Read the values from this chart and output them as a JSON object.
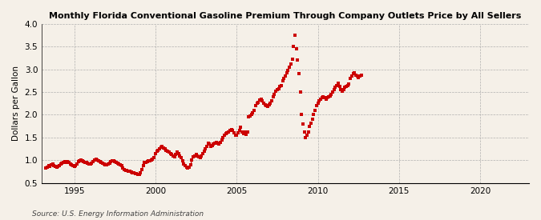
{
  "title": "Monthly Florida Conventional Gasoline Premium Through Company Outlets Price by All Sellers",
  "ylabel": "Dollars per Gallon",
  "source": "Source: U.S. Energy Information Administration",
  "background_color": "#f5f0e8",
  "line_color": "#cc0000",
  "xlim": [
    1993.0,
    2023.0
  ],
  "ylim": [
    0.5,
    4.0
  ],
  "yticks": [
    0.5,
    1.0,
    1.5,
    2.0,
    2.5,
    3.0,
    3.5,
    4.0
  ],
  "xticks": [
    1995,
    2000,
    2005,
    2010,
    2015,
    2020
  ],
  "line_data": [
    [
      1993.25,
      0.82
    ],
    [
      1993.33,
      0.85
    ],
    [
      1993.42,
      0.88
    ],
    [
      1993.5,
      0.87
    ],
    [
      1993.58,
      0.9
    ],
    [
      1993.67,
      0.91
    ],
    [
      1993.75,
      0.88
    ],
    [
      1993.83,
      0.87
    ],
    [
      1993.92,
      0.85
    ],
    [
      1994.0,
      0.86
    ],
    [
      1994.08,
      0.88
    ],
    [
      1994.17,
      0.92
    ],
    [
      1994.25,
      0.93
    ],
    [
      1994.33,
      0.95
    ],
    [
      1994.42,
      0.97
    ],
    [
      1994.5,
      0.96
    ],
    [
      1994.58,
      0.97
    ],
    [
      1994.67,
      0.95
    ],
    [
      1994.75,
      0.92
    ],
    [
      1994.83,
      0.9
    ],
    [
      1994.92,
      0.88
    ],
    [
      1995.0,
      0.87
    ],
    [
      1995.08,
      0.88
    ],
    [
      1995.17,
      0.92
    ],
    [
      1995.25,
      0.97
    ],
    [
      1995.33,
      0.99
    ],
    [
      1995.42,
      1.0
    ],
    [
      1995.5,
      0.98
    ],
    [
      1995.58,
      0.97
    ],
    [
      1995.67,
      0.96
    ],
    [
      1995.75,
      0.95
    ],
    [
      1995.83,
      0.93
    ],
    [
      1995.92,
      0.92
    ],
    [
      1996.0,
      0.91
    ],
    [
      1996.08,
      0.93
    ],
    [
      1996.17,
      0.97
    ],
    [
      1996.25,
      1.0
    ],
    [
      1996.33,
      1.02
    ],
    [
      1996.42,
      1.01
    ],
    [
      1996.5,
      0.98
    ],
    [
      1996.58,
      0.97
    ],
    [
      1996.67,
      0.95
    ],
    [
      1996.75,
      0.94
    ],
    [
      1996.83,
      0.92
    ],
    [
      1996.92,
      0.9
    ],
    [
      1997.0,
      0.89
    ],
    [
      1997.08,
      0.91
    ],
    [
      1997.17,
      0.94
    ],
    [
      1997.25,
      0.97
    ],
    [
      1997.33,
      0.98
    ],
    [
      1997.42,
      0.98
    ],
    [
      1997.5,
      0.97
    ],
    [
      1997.58,
      0.96
    ],
    [
      1997.67,
      0.94
    ],
    [
      1997.75,
      0.92
    ],
    [
      1997.83,
      0.9
    ],
    [
      1997.92,
      0.88
    ],
    [
      1998.0,
      0.82
    ],
    [
      1998.08,
      0.8
    ],
    [
      1998.17,
      0.78
    ],
    [
      1998.25,
      0.77
    ],
    [
      1998.33,
      0.76
    ],
    [
      1998.42,
      0.75
    ],
    [
      1998.5,
      0.74
    ],
    [
      1998.58,
      0.73
    ],
    [
      1998.67,
      0.72
    ],
    [
      1998.75,
      0.7
    ],
    [
      1998.83,
      0.7
    ],
    [
      1998.92,
      0.69
    ],
    [
      1999.0,
      0.68
    ],
    [
      1999.08,
      0.72
    ],
    [
      1999.17,
      0.8
    ],
    [
      1999.25,
      0.88
    ],
    [
      1999.33,
      0.95
    ],
    [
      1999.42,
      0.96
    ],
    [
      1999.5,
      0.97
    ],
    [
      1999.58,
      0.98
    ],
    [
      1999.67,
      0.99
    ],
    [
      1999.75,
      1.0
    ],
    [
      1999.83,
      1.02
    ],
    [
      1999.92,
      1.05
    ],
    [
      2000.0,
      1.15
    ],
    [
      2000.08,
      1.2
    ],
    [
      2000.17,
      1.22
    ],
    [
      2000.25,
      1.25
    ],
    [
      2000.33,
      1.28
    ],
    [
      2000.42,
      1.3
    ],
    [
      2000.5,
      1.27
    ],
    [
      2000.58,
      1.25
    ],
    [
      2000.67,
      1.22
    ],
    [
      2000.75,
      1.2
    ],
    [
      2000.83,
      1.18
    ],
    [
      2000.92,
      1.15
    ],
    [
      2001.0,
      1.12
    ],
    [
      2001.08,
      1.1
    ],
    [
      2001.17,
      1.08
    ],
    [
      2001.25,
      1.12
    ],
    [
      2001.33,
      1.18
    ],
    [
      2001.42,
      1.15
    ],
    [
      2001.5,
      1.1
    ],
    [
      2001.58,
      1.05
    ],
    [
      2001.67,
      0.98
    ],
    [
      2001.75,
      0.92
    ],
    [
      2001.83,
      0.88
    ],
    [
      2001.92,
      0.85
    ],
    [
      2002.0,
      0.82
    ],
    [
      2002.08,
      0.85
    ],
    [
      2002.17,
      0.9
    ],
    [
      2002.25,
      1.0
    ],
    [
      2002.33,
      1.08
    ],
    [
      2002.42,
      1.1
    ],
    [
      2002.5,
      1.12
    ],
    [
      2002.58,
      1.1
    ],
    [
      2002.67,
      1.08
    ],
    [
      2002.75,
      1.05
    ],
    [
      2002.83,
      1.1
    ],
    [
      2002.92,
      1.15
    ],
    [
      2003.0,
      1.2
    ],
    [
      2003.08,
      1.25
    ],
    [
      2003.17,
      1.3
    ],
    [
      2003.25,
      1.38
    ],
    [
      2003.33,
      1.35
    ],
    [
      2003.42,
      1.3
    ]
  ],
  "dot_data": [
    [
      2003.5,
      1.32
    ],
    [
      2003.58,
      1.35
    ],
    [
      2003.67,
      1.38
    ],
    [
      2003.75,
      1.4
    ],
    [
      2003.83,
      1.38
    ],
    [
      2003.92,
      1.35
    ],
    [
      2004.0,
      1.4
    ],
    [
      2004.08,
      1.45
    ],
    [
      2004.17,
      1.5
    ],
    [
      2004.25,
      1.55
    ],
    [
      2004.33,
      1.58
    ],
    [
      2004.42,
      1.6
    ],
    [
      2004.5,
      1.62
    ],
    [
      2004.58,
      1.65
    ],
    [
      2004.67,
      1.68
    ],
    [
      2004.75,
      1.65
    ],
    [
      2004.83,
      1.6
    ],
    [
      2004.92,
      1.55
    ],
    [
      2005.0,
      1.55
    ],
    [
      2005.08,
      1.6
    ],
    [
      2005.17,
      1.65
    ],
    [
      2005.25,
      1.72
    ],
    [
      2005.33,
      1.62
    ],
    [
      2005.42,
      1.58
    ],
    [
      2005.5,
      1.62
    ],
    [
      2005.58,
      1.57
    ],
    [
      2005.67,
      1.62
    ],
    [
      2005.75,
      1.95
    ],
    [
      2005.83,
      1.97
    ],
    [
      2005.92,
      2.0
    ],
    [
      2006.0,
      2.05
    ],
    [
      2006.08,
      2.1
    ],
    [
      2006.17,
      2.2
    ],
    [
      2006.25,
      2.25
    ],
    [
      2006.33,
      2.28
    ],
    [
      2006.42,
      2.32
    ],
    [
      2006.5,
      2.35
    ],
    [
      2006.58,
      2.3
    ],
    [
      2006.67,
      2.25
    ],
    [
      2006.75,
      2.22
    ],
    [
      2006.83,
      2.2
    ],
    [
      2006.92,
      2.18
    ],
    [
      2007.0,
      2.22
    ],
    [
      2007.08,
      2.25
    ],
    [
      2007.17,
      2.3
    ],
    [
      2007.25,
      2.4
    ],
    [
      2007.33,
      2.45
    ],
    [
      2007.42,
      2.52
    ],
    [
      2007.5,
      2.55
    ],
    [
      2007.58,
      2.58
    ],
    [
      2007.67,
      2.62
    ],
    [
      2007.75,
      2.65
    ],
    [
      2007.83,
      2.75
    ],
    [
      2007.92,
      2.8
    ],
    [
      2008.0,
      2.85
    ],
    [
      2008.08,
      2.92
    ],
    [
      2008.17,
      2.98
    ],
    [
      2008.25,
      3.05
    ],
    [
      2008.33,
      3.12
    ],
    [
      2008.42,
      3.22
    ],
    [
      2008.5,
      3.5
    ],
    [
      2008.58,
      3.75
    ],
    [
      2008.67,
      3.45
    ],
    [
      2008.75,
      3.2
    ],
    [
      2008.83,
      2.9
    ],
    [
      2008.92,
      2.5
    ],
    [
      2009.0,
      2.0
    ],
    [
      2009.08,
      1.8
    ],
    [
      2009.17,
      1.62
    ],
    [
      2009.25,
      1.5
    ],
    [
      2009.33,
      1.55
    ],
    [
      2009.42,
      1.62
    ],
    [
      2009.5,
      1.75
    ],
    [
      2009.58,
      1.82
    ],
    [
      2009.67,
      1.9
    ],
    [
      2009.75,
      2.0
    ],
    [
      2009.83,
      2.1
    ],
    [
      2009.92,
      2.2
    ],
    [
      2010.0,
      2.25
    ],
    [
      2010.08,
      2.3
    ],
    [
      2010.17,
      2.35
    ],
    [
      2010.25,
      2.38
    ],
    [
      2010.33,
      2.4
    ],
    [
      2010.42,
      2.38
    ],
    [
      2010.5,
      2.35
    ],
    [
      2010.58,
      2.38
    ],
    [
      2010.67,
      2.4
    ],
    [
      2010.75,
      2.42
    ],
    [
      2010.83,
      2.45
    ],
    [
      2010.92,
      2.5
    ],
    [
      2011.0,
      2.55
    ],
    [
      2011.08,
      2.6
    ],
    [
      2011.17,
      2.65
    ],
    [
      2011.25,
      2.7
    ],
    [
      2011.33,
      2.62
    ],
    [
      2011.42,
      2.55
    ],
    [
      2011.5,
      2.52
    ],
    [
      2011.58,
      2.55
    ],
    [
      2011.67,
      2.6
    ],
    [
      2011.75,
      2.62
    ],
    [
      2011.83,
      2.65
    ],
    [
      2011.92,
      2.68
    ],
    [
      2012.0,
      2.8
    ],
    [
      2012.08,
      2.85
    ],
    [
      2012.17,
      2.9
    ],
    [
      2012.25,
      2.92
    ],
    [
      2012.33,
      2.88
    ],
    [
      2012.42,
      2.85
    ],
    [
      2012.5,
      2.82
    ],
    [
      2012.58,
      2.85
    ],
    [
      2012.67,
      2.88
    ]
  ]
}
